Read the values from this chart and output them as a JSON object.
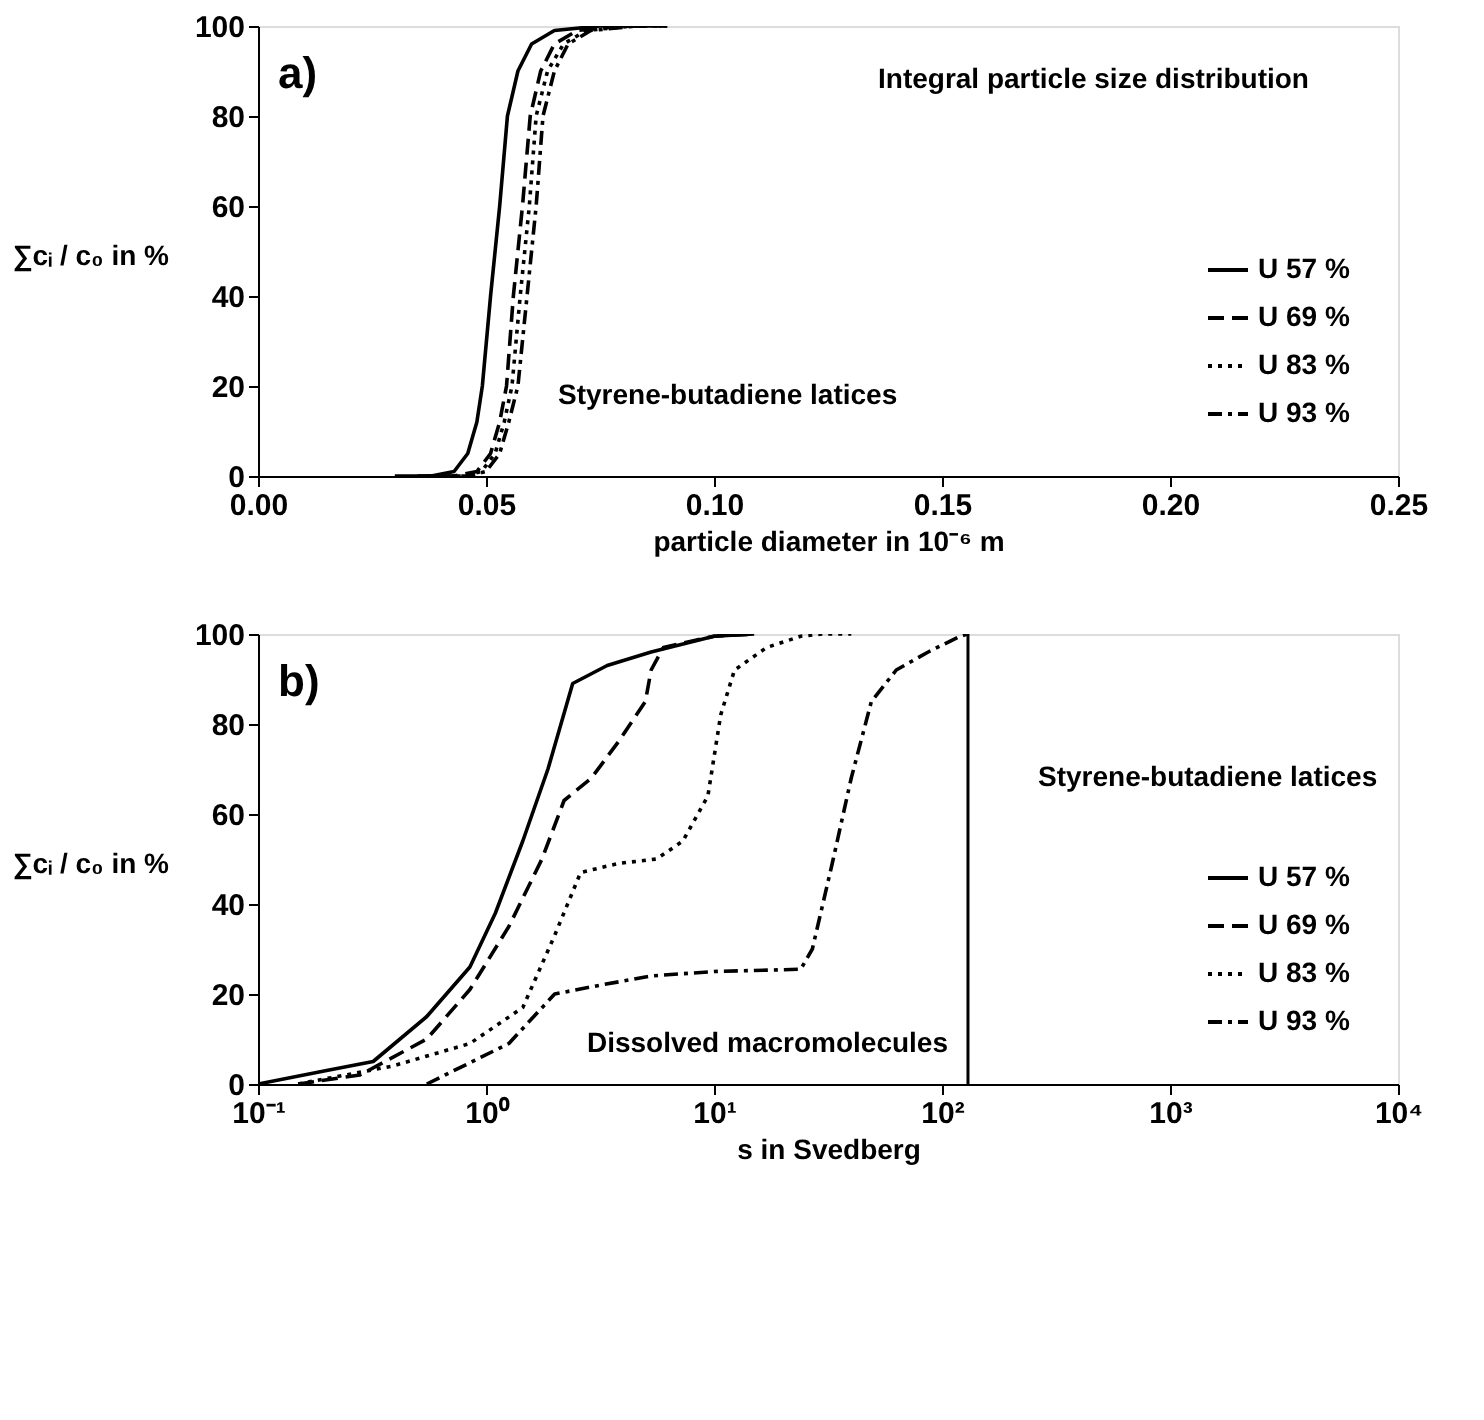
{
  "chart_data": [
    {
      "type": "line",
      "xlabel": "particle diameter in 10⁻⁶ m",
      "ylabel": "∑cᵢ / c₀ in %",
      "xlim": [
        0,
        0.25
      ],
      "ylim": [
        0,
        100
      ],
      "xticks": [
        {
          "value": 0,
          "label": "0.00"
        },
        {
          "value": 0.05,
          "label": "0.05"
        },
        {
          "value": 0.1,
          "label": "0.10"
        },
        {
          "value": 0.15,
          "label": "0.15"
        },
        {
          "value": 0.2,
          "label": "0.20"
        },
        {
          "value": 0.25,
          "label": "0.25"
        }
      ],
      "yticks": [
        0,
        20,
        40,
        60,
        80,
        100
      ],
      "grid": false,
      "legend": "bottom right",
      "marker": "none",
      "annotations": [
        "a)",
        "Integral particle size distribution",
        "Styrene-butadiene latices"
      ],
      "series": [
        {
          "name": "U 57 %",
          "color": "#000000",
          "line_style": "solid",
          "x": [
            0.03,
            0.038,
            0.043,
            0.046,
            0.048,
            0.0492,
            0.051,
            0.053,
            0.0547,
            0.057,
            0.06,
            0.065,
            0.075,
            0.085
          ],
          "values": [
            0,
            0,
            1,
            5,
            12,
            20,
            40,
            60,
            80,
            90,
            96,
            99,
            100,
            100
          ]
        },
        {
          "name": "U 69 %",
          "color": "#000000",
          "line_style": "dashed",
          "x": [
            0.035,
            0.043,
            0.048,
            0.051,
            0.053,
            0.0545,
            0.056,
            0.058,
            0.0597,
            0.062,
            0.065,
            0.07,
            0.08,
            0.09
          ],
          "values": [
            0,
            0,
            1,
            5,
            12,
            20,
            40,
            60,
            80,
            90,
            96,
            99,
            100,
            100
          ]
        },
        {
          "name": "U 83 %",
          "color": "#000000",
          "line_style": "dotted",
          "x": [
            0.037,
            0.045,
            0.049,
            0.052,
            0.054,
            0.0557,
            0.0575,
            0.0595,
            0.061,
            0.0635,
            0.067,
            0.072,
            0.082,
            0.09
          ],
          "values": [
            0,
            0,
            1,
            5,
            12,
            20,
            40,
            60,
            80,
            90,
            96,
            99,
            100,
            100
          ]
        },
        {
          "name": "U 93 %",
          "color": "#000000",
          "line_style": "dashdot",
          "x": [
            0.038,
            0.046,
            0.05,
            0.053,
            0.055,
            0.057,
            0.059,
            0.061,
            0.0625,
            0.065,
            0.068,
            0.073,
            0.083,
            0.09
          ],
          "values": [
            0,
            0,
            1,
            5,
            12,
            20,
            40,
            60,
            80,
            90,
            96,
            99,
            100,
            100
          ]
        }
      ]
    },
    {
      "type": "line",
      "xlabel": "s in Svedberg",
      "ylabel": "∑cᵢ / c₀ in %",
      "log": "x",
      "xlim": [
        0.1,
        10000
      ],
      "ylim": [
        0,
        100
      ],
      "xticks": [
        {
          "value": 0.1,
          "label": "10⁻¹"
        },
        {
          "value": 1,
          "label": "10⁰"
        },
        {
          "value": 10,
          "label": "10¹"
        },
        {
          "value": 100,
          "label": "10²"
        },
        {
          "value": 1000,
          "label": "10³"
        },
        {
          "value": 10000,
          "label": "10⁴"
        }
      ],
      "yticks": [
        0,
        20,
        40,
        60,
        80,
        100
      ],
      "grid": false,
      "legend": "bottom right",
      "marker": "none",
      "ref_lines": [
        {
          "axis": "x",
          "value": 130,
          "label": null
        }
      ],
      "annotations": [
        "b)",
        "Styrene-butadiene latices",
        "Dissolved macromolecules"
      ],
      "series": [
        {
          "name": "U 57 %",
          "color": "#000000",
          "line_style": "solid",
          "x": [
            0.1,
            0.2,
            0.32,
            0.55,
            0.85,
            1.1,
            1.45,
            1.87,
            2.4,
            3.4,
            5.3,
            10,
            15
          ],
          "values": [
            0,
            3,
            5,
            15,
            26,
            38,
            54,
            70,
            89,
            93,
            96,
            99.5,
            100
          ]
        },
        {
          "name": "U 69 %",
          "color": "#000000",
          "line_style": "dashed",
          "x": [
            0.15,
            0.28,
            0.55,
            0.85,
            1.26,
            1.76,
            2.2,
            2.9,
            3.8,
            5.0,
            5.3,
            6,
            10,
            15
          ],
          "values": [
            0,
            2,
            10,
            21,
            35,
            50,
            63,
            68,
            76,
            85,
            92,
            97,
            99.5,
            100
          ]
        },
        {
          "name": "U 83 %",
          "color": "#000000",
          "line_style": "dotted",
          "x": [
            0.15,
            0.39,
            0.85,
            1.45,
            2.0,
            2.6,
            3.8,
            5.6,
            7.3,
            9.4,
            10.7,
            12.3,
            17,
            24,
            30,
            40
          ],
          "values": [
            0,
            4,
            9,
            17,
            33,
            47,
            49,
            50,
            54,
            64,
            82,
            92,
            97,
            99.5,
            100,
            100
          ]
        },
        {
          "name": "U 93 %",
          "color": "#000000",
          "line_style": "dashdot",
          "x": [
            0.55,
            1.26,
            2.0,
            3.2,
            5.3,
            10,
            24,
            27,
            33,
            40,
            49,
            63,
            87,
            120,
            130
          ],
          "values": [
            0,
            9,
            20,
            22,
            24,
            25,
            25.5,
            30,
            49,
            68,
            85,
            92,
            96,
            99.5,
            100
          ]
        }
      ]
    }
  ]
}
